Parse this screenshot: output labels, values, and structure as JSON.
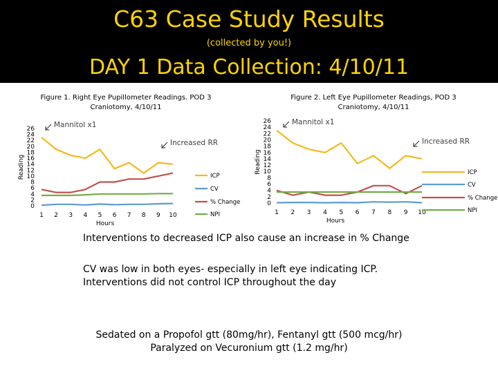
{
  "header": {
    "title": "C63 Case Study Results",
    "subtitle": "(collected by you!)",
    "heading": "DAY 1 Data Collection: 4/10/11"
  },
  "colors": {
    "header_bg": "#000000",
    "header_text": "#FFD400",
    "icp": "#F5B81C",
    "cv": "#5B9BD5",
    "pct": "#C0504D",
    "npi": "#70AD47",
    "annotation": "#404040"
  },
  "chart_data": [
    {
      "type": "line",
      "title": "Figure 1. Right Eye Pupillometer Readings. POD 3 Craniotomy, 4/10/11",
      "xlabel": "Hours",
      "ylabel": "Reading",
      "x": [
        1,
        2,
        3,
        4,
        5,
        6,
        7,
        8,
        9,
        10
      ],
      "ylim": [
        0,
        26
      ],
      "yticks": [
        0,
        2,
        4,
        6,
        8,
        10,
        12,
        14,
        16,
        18,
        20,
        22,
        24,
        26
      ],
      "legend": "right",
      "series": [
        {
          "name": "ICP",
          "color": "#F5B81C",
          "values": [
            23,
            19,
            17,
            16,
            19,
            12.5,
            14.5,
            11,
            14.5,
            14
          ]
        },
        {
          "name": "CV",
          "color": "#5B9BD5",
          "values": [
            0.2,
            0.5,
            0.5,
            0.3,
            0.6,
            0.4,
            0.5,
            0.5,
            0.7,
            0.8
          ]
        },
        {
          "name": "% Change",
          "color": "#C0504D",
          "values": [
            5.5,
            4.5,
            4.5,
            5.5,
            8,
            8,
            9,
            9,
            10,
            11
          ]
        },
        {
          "name": "NPI",
          "color": "#70AD47",
          "values": [
            3.5,
            3.5,
            3.5,
            3.7,
            4,
            4,
            4,
            4,
            4.1,
            4.1
          ]
        }
      ],
      "annotations": [
        {
          "text": "Mannitol x1",
          "x": 1,
          "y": 23
        },
        {
          "text": "Increased RR",
          "x": 7.8,
          "y": 11.5
        }
      ]
    },
    {
      "type": "line",
      "title": "Figure 2. Left Eye Pupillometer Readings, POD 3 Craniotomy, 4/10/11",
      "xlabel": "Hours",
      "ylabel": "Reading",
      "x": [
        1,
        2,
        3,
        4,
        5,
        6,
        7,
        8,
        9,
        10
      ],
      "ylim": [
        0,
        26
      ],
      "yticks": [
        0,
        2,
        4,
        6,
        8,
        10,
        12,
        14,
        16,
        18,
        20,
        22,
        24,
        26
      ],
      "legend": "right",
      "series": [
        {
          "name": "ICP",
          "color": "#F5B81C",
          "values": [
            23,
            19,
            17,
            16,
            19,
            12.5,
            15,
            11,
            15,
            14
          ]
        },
        {
          "name": "CV",
          "color": "#5B9BD5",
          "values": [
            0.1,
            0.2,
            0.2,
            0.1,
            0.2,
            0.1,
            0.4,
            0.3,
            0.4,
            0.1
          ]
        },
        {
          "name": "% Change",
          "color": "#C0504D",
          "values": [
            4,
            2.5,
            3.5,
            2.5,
            2.5,
            3.5,
            5.5,
            5.5,
            3,
            5.5
          ]
        },
        {
          "name": "NPI",
          "color": "#70AD47",
          "values": [
            3.5,
            3.5,
            3.5,
            3.5,
            3.5,
            3.5,
            3.5,
            3.5,
            3.5,
            3.5
          ]
        }
      ],
      "annotations": [
        {
          "text": "Mannitol x1",
          "x": 1,
          "y": 23
        },
        {
          "text": "Increased RR",
          "x": 8,
          "y": 11.5
        }
      ]
    }
  ],
  "body": {
    "line1": "Interventions to decreased ICP also cause an increase in % Change",
    "line2": "CV was low in both eyes- especially in left eye indicating ICP.",
    "line3": "Interventions did not control ICP throughout the day",
    "line4": "Sedated on a Propofol gtt (80mg/hr), Fentanyl gtt (500 mcg/hr)",
    "line5": "Paralyzed on Vecuronium gtt (1.2 mg/hr)"
  }
}
